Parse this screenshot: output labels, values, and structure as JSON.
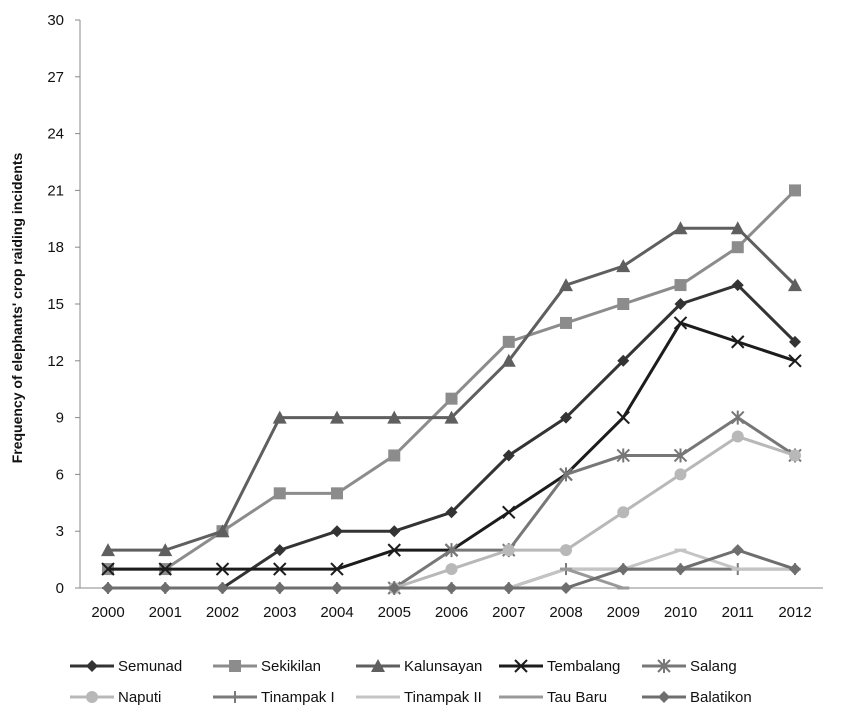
{
  "chart_data": {
    "type": "line",
    "title": "",
    "xlabel": "",
    "ylabel": "Frequency of elephants' crop raiding incidents",
    "ylim": [
      0,
      30
    ],
    "yticks": [
      0,
      3,
      6,
      9,
      12,
      15,
      18,
      21,
      24,
      27,
      30
    ],
    "grid": false,
    "legend_position": "bottom",
    "x": [
      "2000",
      "2001",
      "2002",
      "2003",
      "2004",
      "2005",
      "2006",
      "2007",
      "2008",
      "2009",
      "2010",
      "2011",
      "2012"
    ],
    "series": [
      {
        "name": "Semunad",
        "color": "#333333",
        "marker": "diamond",
        "values": [
          null,
          null,
          0,
          2,
          3,
          3,
          4,
          7,
          9,
          12,
          15,
          16,
          13
        ]
      },
      {
        "name": "Sekikilan",
        "color": "#8c8c8c",
        "marker": "square",
        "values": [
          1,
          1,
          3,
          5,
          5,
          7,
          10,
          13,
          14,
          15,
          16,
          18,
          21
        ]
      },
      {
        "name": "Kalunsayan",
        "color": "#5f5f5f",
        "marker": "triangle",
        "values": [
          2,
          2,
          3,
          9,
          9,
          9,
          9,
          12,
          16,
          17,
          19,
          19,
          16
        ]
      },
      {
        "name": "Tembalang",
        "color": "#1c1c1c",
        "marker": "x",
        "values": [
          1,
          1,
          1,
          1,
          1,
          2,
          2,
          4,
          6,
          9,
          14,
          13,
          12
        ]
      },
      {
        "name": "Salang",
        "color": "#777777",
        "marker": "star",
        "values": [
          null,
          null,
          null,
          null,
          null,
          0,
          2,
          2,
          6,
          7,
          7,
          9,
          7
        ]
      },
      {
        "name": "Naputi",
        "color": "#b8b8b8",
        "marker": "circle",
        "values": [
          null,
          null,
          null,
          null,
          null,
          0,
          1,
          2,
          2,
          4,
          6,
          8,
          7
        ]
      },
      {
        "name": "Tinampak I",
        "color": "#7a7a7a",
        "marker": "plus",
        "values": [
          0,
          0,
          0,
          0,
          0,
          0,
          0,
          0,
          1,
          1,
          1,
          1,
          1
        ]
      },
      {
        "name": "Tinampak II",
        "color": "#c4c4c4",
        "marker": "dash",
        "values": [
          null,
          null,
          null,
          null,
          null,
          null,
          null,
          0,
          1,
          1,
          2,
          1,
          1
        ]
      },
      {
        "name": "Tau Baru",
        "color": "#999999",
        "marker": "dash",
        "values": [
          null,
          null,
          null,
          null,
          null,
          null,
          null,
          null,
          1,
          0,
          null,
          null,
          null
        ]
      },
      {
        "name": "Balatikon",
        "color": "#6e6e6e",
        "marker": "diamond",
        "values": [
          0,
          0,
          0,
          0,
          0,
          0,
          0,
          0,
          0,
          1,
          1,
          2,
          1
        ]
      }
    ]
  }
}
